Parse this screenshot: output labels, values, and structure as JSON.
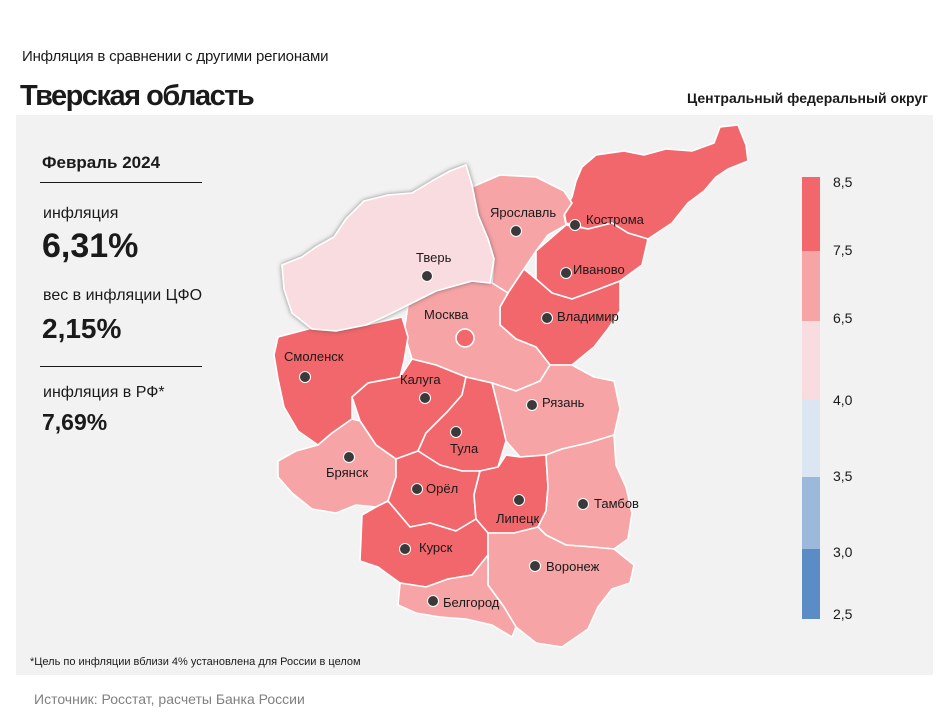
{
  "header": {
    "supertitle": "Инфляция  в сравнении  с другими  регионами",
    "title": "Тверская область",
    "district": "Центральный федеральный округ"
  },
  "stats": {
    "period": "Февраль 2024",
    "inflation_label": "инфляция",
    "inflation_value": "6,31%",
    "weight_label": "вес в инфляции  ЦФО",
    "weight_value": "2,15%",
    "rf_label": "инфляция  в РФ*",
    "rf_value": "7,69%"
  },
  "footnote": "*Цель по инфляции вблизи 4% установлена для России в целом",
  "source": "Источник: Росстат, расчеты Банка России",
  "legend": {
    "ticks": [
      "8,5",
      "7,5",
      "6,5",
      "4,0",
      "3,5",
      "3,0",
      "2,5"
    ],
    "colors": [
      "#f2676b",
      "#f7a4a6",
      "#f9dcdf",
      "#dce6f2",
      "#9cb9dc",
      "#5b8cc6"
    ]
  },
  "regions": {
    "tver": {
      "name": "Тверь",
      "color": "#f9dcdf"
    },
    "yaroslavl": {
      "name": "Ярославль",
      "color": "#f7a4a6"
    },
    "kostroma": {
      "name": "Кострома",
      "color": "#f2676b"
    },
    "ivanovo": {
      "name": "Иваново",
      "color": "#f2676b"
    },
    "vladimir": {
      "name": "Владимир",
      "color": "#f2676b"
    },
    "moscow": {
      "name": "Москва",
      "color": "#f7a4a6"
    },
    "smolensk": {
      "name": "Смоленск",
      "color": "#f2676b"
    },
    "kaluga": {
      "name": "Калуга",
      "color": "#f2676b"
    },
    "ryazan": {
      "name": "Рязань",
      "color": "#f7a4a6"
    },
    "tula": {
      "name": "Тула",
      "color": "#f2676b"
    },
    "bryansk": {
      "name": "Брянск",
      "color": "#f7a4a6"
    },
    "orel": {
      "name": "Орёл",
      "color": "#f2676b"
    },
    "lipetsk": {
      "name": "Липецк",
      "color": "#f2676b"
    },
    "tambov": {
      "name": "Тамбов",
      "color": "#f7a4a6"
    },
    "kursk": {
      "name": "Курск",
      "color": "#f2676b"
    },
    "voronezh": {
      "name": "Воронеж",
      "color": "#f7a4a6"
    },
    "belgorod": {
      "name": "Белгород",
      "color": "#f7a4a6"
    }
  }
}
